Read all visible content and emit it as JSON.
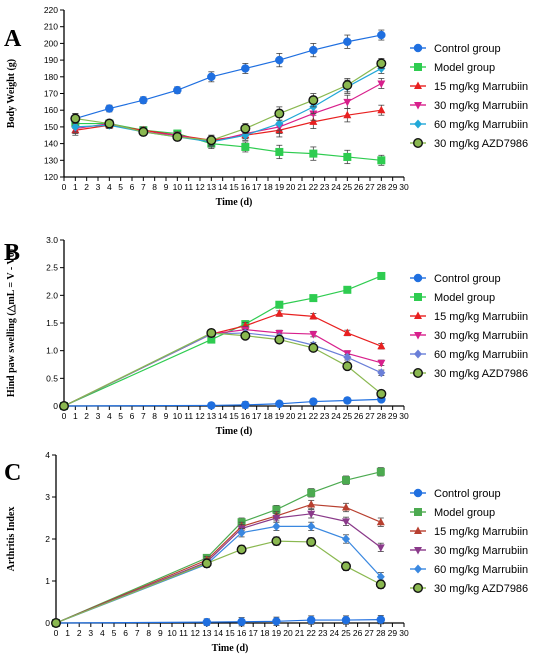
{
  "chart_data": [
    {
      "panel": "A",
      "type": "line",
      "xlabel": "Time (d)",
      "ylabel": "Body Weight (g)",
      "xlim": [
        0,
        30
      ],
      "ylim": [
        120,
        220
      ],
      "xticks": [
        0,
        1,
        2,
        3,
        4,
        5,
        6,
        7,
        8,
        9,
        10,
        11,
        12,
        13,
        14,
        15,
        16,
        17,
        18,
        19,
        20,
        21,
        22,
        23,
        24,
        25,
        26,
        27,
        28,
        29,
        30
      ],
      "yticks": [
        120,
        130,
        140,
        150,
        160,
        170,
        180,
        190,
        200,
        210,
        220
      ],
      "legend_position": "right",
      "series": [
        {
          "name": "Control group",
          "color": "#1f6fe0",
          "marker": "circle",
          "x": [
            1,
            4,
            7,
            10,
            13,
            16,
            19,
            22,
            25,
            28
          ],
          "y": [
            155,
            161,
            166,
            172,
            180,
            185,
            190,
            196,
            201,
            205
          ]
        },
        {
          "name": "Model group",
          "color": "#2ecc50",
          "marker": "square",
          "x": [
            1,
            4,
            7,
            10,
            13,
            16,
            19,
            22,
            25,
            28
          ],
          "y": [
            152,
            152,
            148,
            146,
            140,
            138,
            135,
            134,
            132,
            130
          ]
        },
        {
          "name": "15 mg/kg Marrubiin",
          "color": "#e82020",
          "marker": "triangle-up",
          "x": [
            1,
            4,
            7,
            10,
            13,
            16,
            19,
            22,
            25,
            28
          ],
          "y": [
            148,
            151,
            148,
            145,
            142,
            145,
            148,
            153,
            157,
            160
          ]
        },
        {
          "name": "30 mg/kg Marrubiin",
          "color": "#d8208c",
          "marker": "triangle-down",
          "x": [
            1,
            4,
            7,
            10,
            13,
            16,
            19,
            22,
            25,
            28
          ],
          "y": [
            149,
            152,
            147,
            145,
            141,
            146,
            150,
            158,
            165,
            176
          ]
        },
        {
          "name": "60 mg/kg Marrubiin",
          "color": "#22a8d8",
          "marker": "diamond",
          "x": [
            1,
            4,
            7,
            10,
            13,
            16,
            19,
            22,
            25,
            28
          ],
          "y": [
            150,
            151,
            147,
            144,
            141,
            145,
            152,
            162,
            174,
            185
          ]
        },
        {
          "name": "30 mg/kg AZD7986",
          "color": "#8ab850",
          "marker": "circle-dark",
          "x": [
            1,
            4,
            7,
            10,
            13,
            16,
            19,
            22,
            25,
            28
          ],
          "y": [
            155,
            152,
            147,
            144,
            142,
            149,
            158,
            166,
            175,
            188
          ]
        }
      ]
    },
    {
      "panel": "B",
      "type": "line",
      "xlabel": "Time (d)",
      "ylabel": "Hind paw swelling (△mL = V - V0)",
      "xlim": [
        0,
        30
      ],
      "ylim": [
        0,
        3.0
      ],
      "xticks": [
        0,
        1,
        2,
        3,
        4,
        5,
        6,
        7,
        8,
        9,
        10,
        11,
        12,
        13,
        14,
        15,
        16,
        17,
        18,
        19,
        20,
        21,
        22,
        23,
        24,
        25,
        26,
        27,
        28,
        29,
        30
      ],
      "yticks": [
        "0",
        "0.5",
        "1.0",
        "1.5",
        "2.0",
        "2.5",
        "3.0"
      ],
      "legend_position": "right",
      "series": [
        {
          "name": "Control group",
          "color": "#1f6fe0",
          "marker": "circle",
          "x": [
            0,
            13,
            16,
            19,
            22,
            25,
            28
          ],
          "y": [
            0,
            0.01,
            0.02,
            0.04,
            0.08,
            0.1,
            0.12
          ]
        },
        {
          "name": "Model group",
          "color": "#2ecc50",
          "marker": "square",
          "x": [
            0,
            13,
            16,
            19,
            22,
            25,
            28
          ],
          "y": [
            0,
            1.2,
            1.48,
            1.83,
            1.95,
            2.1,
            2.35
          ]
        },
        {
          "name": "15 mg/kg Marrubiin",
          "color": "#e82020",
          "marker": "triangle-up",
          "x": [
            0,
            13,
            16,
            19,
            22,
            25,
            28
          ],
          "y": [
            0,
            1.3,
            1.45,
            1.67,
            1.62,
            1.32,
            1.08
          ]
        },
        {
          "name": "30 mg/kg Marrubiin",
          "color": "#d8208c",
          "marker": "triangle-down",
          "x": [
            0,
            13,
            16,
            19,
            22,
            25,
            28
          ],
          "y": [
            0,
            1.3,
            1.38,
            1.32,
            1.3,
            0.95,
            0.78
          ]
        },
        {
          "name": "60 mg/kg Marrubiin",
          "color": "#6a7fd8",
          "marker": "diamond",
          "x": [
            0,
            13,
            16,
            19,
            22,
            25,
            28
          ],
          "y": [
            0,
            1.3,
            1.32,
            1.25,
            1.1,
            0.88,
            0.6
          ]
        },
        {
          "name": "30 mg/kg AZD7986",
          "color": "#8ab850",
          "marker": "circle-dark",
          "x": [
            0,
            13,
            16,
            19,
            22,
            25,
            28
          ],
          "y": [
            0,
            1.32,
            1.27,
            1.2,
            1.05,
            0.72,
            0.22
          ]
        }
      ]
    },
    {
      "panel": "C",
      "type": "line",
      "xlabel": "Time (d)",
      "ylabel": "Arthritis Index",
      "xlim": [
        0,
        30
      ],
      "ylim": [
        0,
        4
      ],
      "xticks": [
        0,
        1,
        2,
        3,
        4,
        5,
        6,
        7,
        8,
        9,
        10,
        11,
        12,
        13,
        14,
        15,
        16,
        17,
        18,
        19,
        20,
        21,
        22,
        23,
        24,
        25,
        26,
        27,
        28,
        29,
        30
      ],
      "yticks": [
        0,
        1,
        2,
        3,
        4
      ],
      "legend_position": "right",
      "series": [
        {
          "name": "Control group",
          "color": "#1f6fe0",
          "marker": "circle",
          "x": [
            0,
            13,
            16,
            19,
            22,
            25,
            28
          ],
          "y": [
            0,
            0.02,
            0.03,
            0.04,
            0.07,
            0.07,
            0.08
          ]
        },
        {
          "name": "Model group",
          "color": "#4caa50",
          "marker": "square",
          "x": [
            0,
            13,
            16,
            19,
            22,
            25,
            28
          ],
          "y": [
            0,
            1.55,
            2.4,
            2.7,
            3.1,
            3.4,
            3.6
          ]
        },
        {
          "name": "15 mg/kg Marrubiin",
          "color": "#b84030",
          "marker": "triangle-up",
          "x": [
            0,
            13,
            16,
            19,
            22,
            25,
            28
          ],
          "y": [
            0,
            1.5,
            2.3,
            2.55,
            2.82,
            2.75,
            2.4
          ]
        },
        {
          "name": "30 mg/kg Marrubiin",
          "color": "#8a3a8a",
          "marker": "triangle-down",
          "x": [
            0,
            13,
            16,
            19,
            22,
            25,
            28
          ],
          "y": [
            0,
            1.45,
            2.25,
            2.5,
            2.6,
            2.42,
            1.8
          ]
        },
        {
          "name": "60 mg/kg Marrubiin",
          "color": "#3a88e0",
          "marker": "diamond",
          "x": [
            0,
            13,
            16,
            19,
            22,
            25,
            28
          ],
          "y": [
            0,
            1.4,
            2.15,
            2.3,
            2.3,
            2.0,
            1.1
          ]
        },
        {
          "name": "30 mg/kg AZD7986",
          "color": "#8ab850",
          "marker": "circle-dark",
          "x": [
            0,
            13,
            16,
            19,
            22,
            25,
            28
          ],
          "y": [
            0,
            1.42,
            1.75,
            1.95,
            1.93,
            1.35,
            0.92
          ]
        }
      ]
    }
  ]
}
